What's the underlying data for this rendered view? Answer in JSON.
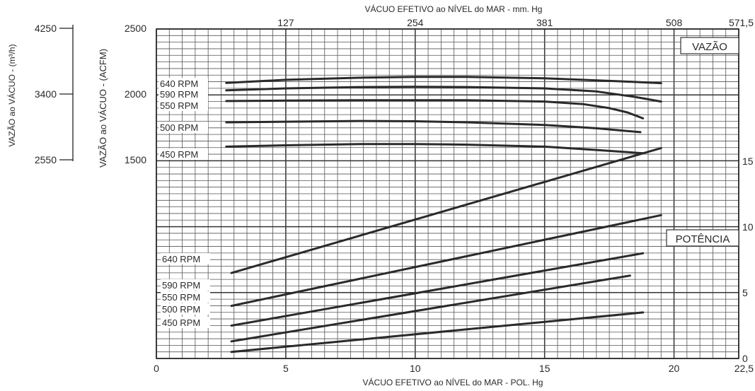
{
  "chart_data": {
    "type": "line",
    "top_axis": {
      "title": "VÁCUO EFETIVO ao NÍVEL do MAR - mm. Hg",
      "ticks": [
        {
          "x": 5,
          "label": "127"
        },
        {
          "x": 10,
          "label": "254"
        },
        {
          "x": 15,
          "label": "381"
        },
        {
          "x": 20,
          "label": "508"
        },
        {
          "x": 22.5,
          "label": "571,5"
        }
      ]
    },
    "bottom_axis": {
      "title": "VÁCUO EFETIVO ao NÍVEL do MAR - POL. Hg",
      "ticks": [
        {
          "x": 0,
          "label": "0"
        },
        {
          "x": 5,
          "label": "5"
        },
        {
          "x": 10,
          "label": "10"
        },
        {
          "x": 15,
          "label": "15"
        },
        {
          "x": 20,
          "label": "20"
        },
        {
          "x": 22.5,
          "label": "22,5"
        }
      ],
      "xlim": [
        0,
        22.5
      ]
    },
    "left_axis_acfm": {
      "title": "VAZÃO ao VÁCUO - (ACFM)",
      "ticks": [
        {
          "v": 2500,
          "label": "2500"
        },
        {
          "v": 2000,
          "label": "2000"
        },
        {
          "v": 1500,
          "label": "1500"
        }
      ]
    },
    "left_axis_m3h": {
      "title": "VAZÃO ao VÁCUO - (m³/h)",
      "ticks": [
        {
          "v": 2500,
          "label": "4250"
        },
        {
          "v": 2000,
          "label": "3400"
        },
        {
          "v": 1500,
          "label": "2550"
        }
      ]
    },
    "right_axis": {
      "ticks": [
        {
          "v": 15,
          "label": "15"
        },
        {
          "v": 10,
          "label": "10"
        },
        {
          "v": 5,
          "label": "5"
        },
        {
          "v": 0,
          "label": "0"
        }
      ],
      "ylim": [
        0,
        15
      ]
    },
    "flow_panel": {
      "title": "VAZÃO",
      "ylim": [
        1500,
        2500
      ],
      "series": [
        {
          "name": "640 RPM",
          "x": [
            2.7,
            5,
            8,
            10,
            12,
            15,
            18,
            19.5
          ],
          "y": [
            2085,
            2108,
            2125,
            2130,
            2130,
            2120,
            2096,
            2083
          ]
        },
        {
          "name": "590 RPM",
          "x": [
            2.7,
            5,
            8,
            10,
            12,
            15,
            17,
            18.5,
            19.5
          ],
          "y": [
            2028,
            2043,
            2053,
            2055,
            2053,
            2043,
            2020,
            1978,
            1943
          ]
        },
        {
          "name": "550 RPM",
          "x": [
            2.7,
            5,
            8,
            10,
            12,
            15,
            16.5,
            17.5,
            18.2,
            18.8
          ],
          "y": [
            1947,
            1950,
            1953,
            1953,
            1953,
            1943,
            1923,
            1893,
            1860,
            1815
          ]
        },
        {
          "name": "500 RPM",
          "x": [
            2.7,
            5,
            8,
            10,
            12,
            15,
            17,
            18.7
          ],
          "y": [
            1785,
            1790,
            1795,
            1793,
            1785,
            1765,
            1740,
            1710
          ]
        },
        {
          "name": "450 RPM",
          "x": [
            2.7,
            5,
            8,
            10,
            12,
            15,
            17,
            18.8
          ],
          "y": [
            1600,
            1610,
            1620,
            1620,
            1615,
            1600,
            1575,
            1550
          ]
        }
      ]
    },
    "power_panel": {
      "title": "POTÊNCIA",
      "ylim": [
        0,
        15
      ],
      "series": [
        {
          "name": "640 RPM",
          "x": [
            2.9,
            19.5
          ],
          "y": [
            6.5,
            16.0
          ]
        },
        {
          "name": "590 RPM",
          "x": [
            2.9,
            19.5
          ],
          "y": [
            4.0,
            10.9
          ]
        },
        {
          "name": "550 RPM",
          "x": [
            2.9,
            18.8
          ],
          "y": [
            2.5,
            8.0
          ]
        },
        {
          "name": "500 RPM",
          "x": [
            2.9,
            18.3
          ],
          "y": [
            1.3,
            6.3
          ]
        },
        {
          "name": "450 RPM",
          "x": [
            2.9,
            18.8
          ],
          "y": [
            0.5,
            3.5
          ]
        }
      ]
    }
  }
}
